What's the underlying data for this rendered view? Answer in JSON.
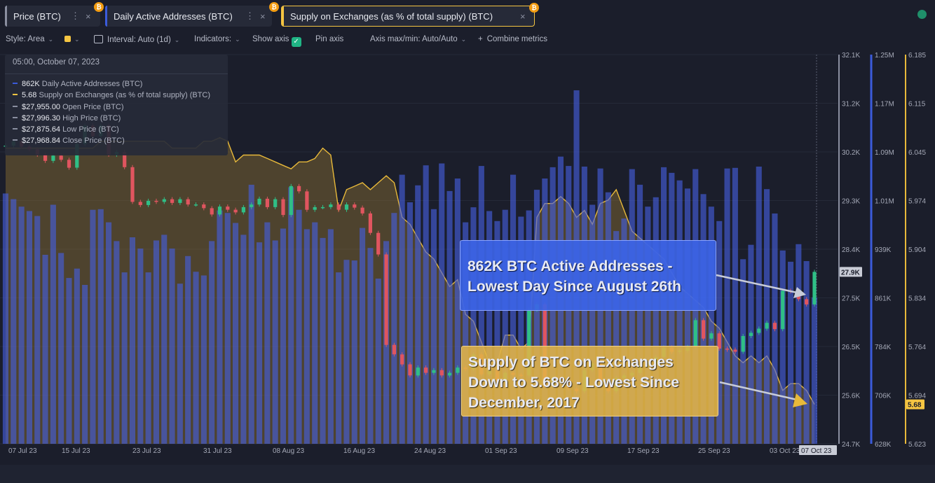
{
  "tabs": [
    {
      "label": "Price (BTC)",
      "color": "#8a8fa0"
    },
    {
      "label": "Daily Active Addresses (BTC)",
      "color": "#3b5bdb"
    },
    {
      "label": "Supply on Exchanges (as % of total supply) (BTC)",
      "color": "#f5c542"
    }
  ],
  "toolbar": {
    "style": "Style: Area",
    "interval": "Interval: Auto (1d)",
    "indicators": "Indicators:",
    "show_axis": "Show axis",
    "pin_axis": "Pin axis",
    "axis_maxmin": "Axis max/min: Auto/Auto",
    "combine": "Combine metrics"
  },
  "tooltip": {
    "date": "05:00, October 07, 2023",
    "rows": [
      {
        "value": "862K",
        "label": "Daily Active Addresses (BTC)",
        "color": "#3b5bdb"
      },
      {
        "value": "5.68",
        "label": "Supply on Exchanges (as % of total supply) (BTC)",
        "color": "#f5c542"
      },
      {
        "value": "$27,955.00",
        "label": "Open Price (BTC)",
        "color": "#8a8fa0"
      },
      {
        "value": "$27,996.30",
        "label": "High Price (BTC)",
        "color": "#8a8fa0"
      },
      {
        "value": "$27,875.64",
        "label": "Low Price (BTC)",
        "color": "#8a8fa0"
      },
      {
        "value": "$27,968.84",
        "label": "Close Price (BTC)",
        "color": "#8a8fa0"
      }
    ]
  },
  "annotations": {
    "active": [
      "862K BTC Active Addresses -",
      "Lowest Day Since August 26th"
    ],
    "supply": [
      "Supply of BTC on Exchanges",
      "Down to 5.68% - Lowest Since",
      "December, 2017"
    ]
  },
  "chart_data": {
    "type": "bar",
    "x_ticks": [
      "07 Jul 23",
      "15 Jul 23",
      "23 Jul 23",
      "31 Jul 23",
      "08 Aug 23",
      "16 Aug 23",
      "24 Aug 23",
      "01 Sep 23",
      "09 Sep 23",
      "17 Sep 23",
      "25 Sep 23",
      "03 Oct 23",
      "07 Oct 23"
    ],
    "price_axis": [
      "32.1K",
      "31.2K",
      "30.2K",
      "29.3K",
      "28.4K",
      "27.5K",
      "26.5K",
      "25.6K",
      "24.7K"
    ],
    "price_label": "27.9K",
    "addr_axis": [
      "1.25M",
      "1.17M",
      "1.09M",
      "1.01M",
      "939K",
      "861K",
      "784K",
      "706K",
      "628K"
    ],
    "supply_axis": [
      "6.185",
      "6.115",
      "6.045",
      "5.974",
      "5.904",
      "5.834",
      "5.764",
      "5.694",
      "5.623"
    ],
    "supply_label": "5.68",
    "addr_range": [
      628000,
      1250000
    ],
    "supply_range": [
      5.623,
      6.185
    ],
    "price_range": [
      24700,
      32100
    ],
    "active_addresses": [
      1028000,
      1019000,
      1007000,
      1000000,
      992000,
      930000,
      1010000,
      933000,
      893000,
      908000,
      882000,
      1002000,
      1003000,
      982000,
      952000,
      902000,
      958000,
      940000,
      902000,
      953000,
      962000,
      940000,
      884000,
      928000,
      903000,
      897000,
      952000,
      1001000,
      997000,
      981000,
      962000,
      1042000,
      950000,
      982000,
      953000,
      972000,
      1038000,
      1002000,
      971000,
      982000,
      957000,
      971000,
      902000,
      922000,
      921000,
      973000,
      941000,
      892000,
      952000,
      997000,
      1058000,
      1014000,
      1041000,
      1073000,
      1003000,
      1076000,
      1032000,
      1052000,
      982000,
      1006000,
      1072000,
      1000000,
      984000,
      1002000,
      1058000,
      991000,
      1001000,
      1034000,
      1052000,
      1070000,
      1087000,
      1072000,
      1193000,
      1071000,
      1010000,
      1068000,
      1030000,
      968000,
      988000,
      1067000,
      1042000,
      1007000,
      1022000,
      1070000,
      1061000,
      1049000,
      1036000,
      1067000,
      1027000,
      1007000,
      984000,
      1068000,
      1069000,
      923000,
      946000,
      1071000,
      1035000,
      996000,
      937000,
      919000,
      947000,
      920000,
      862000
    ],
    "supply_pct": [
      6.05,
      6.05,
      6.05,
      6.05,
      6.05,
      6.05,
      6.05,
      6.05,
      6.05,
      6.05,
      6.05,
      6.05,
      6.06,
      6.06,
      6.06,
      6.06,
      6.06,
      6.06,
      6.06,
      6.06,
      6.06,
      6.05,
      6.05,
      6.05,
      6.05,
      6.06,
      6.06,
      6.065,
      6.06,
      6.03,
      6.04,
      6.04,
      6.04,
      6.035,
      6.03,
      6.025,
      6.02,
      6.03,
      6.03,
      6.035,
      6.05,
      6.04,
      5.96,
      5.99,
      5.995,
      6.0,
      5.99,
      6.0,
      6.01,
      6.0,
      5.95,
      5.94,
      5.92,
      5.9,
      5.89,
      5.87,
      5.85,
      5.86,
      5.81,
      5.8,
      5.77,
      5.74,
      5.74,
      5.78,
      5.78,
      5.76,
      5.77,
      5.95,
      5.97,
      5.97,
      5.98,
      5.97,
      5.95,
      5.96,
      5.94,
      5.97,
      5.975,
      5.99,
      5.96,
      5.93,
      5.92,
      5.91,
      5.9,
      5.89,
      5.87,
      5.85,
      5.84,
      5.83,
      5.82,
      5.8,
      5.79,
      5.77,
      5.75,
      5.74,
      5.75,
      5.74,
      5.75,
      5.73,
      5.7,
      5.71,
      5.71,
      5.7,
      5.68
    ],
    "price_close": [
      30370,
      30450,
      30350,
      30300,
      30200,
      30080,
      30180,
      30100,
      29950,
      30400,
      30750,
      30550,
      30750,
      30200,
      30250,
      29960,
      29300,
      29240,
      29320,
      29300,
      29350,
      29280,
      29350,
      29250,
      29250,
      29180,
      29060,
      29210,
      29150,
      29100,
      29200,
      29250,
      29360,
      29200,
      29350,
      29050,
      29600,
      29500,
      29150,
      29200,
      29200,
      29250,
      29150,
      29250,
      29190,
      29080,
      28710,
      28300,
      26580,
      26400,
      26210,
      26000,
      26150,
      26050,
      26100,
      26000,
      26050,
      26150,
      26120,
      26400,
      26020,
      26100,
      25900,
      26050,
      26010,
      26000,
      27250,
      27350,
      25800,
      25950,
      25900,
      25750,
      25700,
      26100,
      26230,
      25870,
      25700,
      25950,
      26000,
      26050,
      26180,
      26200,
      26350,
      26530,
      26450,
      26470,
      26540,
      27050,
      26700,
      26800,
      26510,
      26490,
      26450,
      26750,
      26810,
      26890,
      27000,
      26880,
      27610,
      27600,
      27450,
      27350,
      27969
    ]
  }
}
